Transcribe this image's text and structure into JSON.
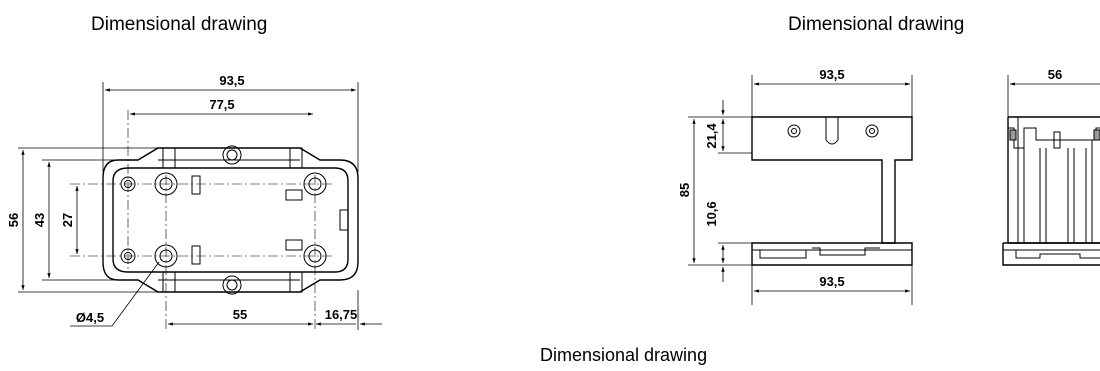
{
  "captions": {
    "left": "Dimensional drawing",
    "right": "Dimensional drawing",
    "bottom": "Dimensional drawing"
  },
  "top_view": {
    "overall_width": "93,5",
    "hole_pitch_outer": "77,5",
    "overall_height": "56",
    "inner_height": "43",
    "hole_pitch_vertical": "27",
    "hole_diameter": "Ø4,5",
    "rail_pitch": "55",
    "offset": "16,75"
  },
  "side_view": {
    "top_width": "93,5",
    "bottom_width": "93,5",
    "height": "85",
    "upper_section": "21,4",
    "lower_section": "10,6"
  },
  "end_view": {
    "width": "56"
  }
}
